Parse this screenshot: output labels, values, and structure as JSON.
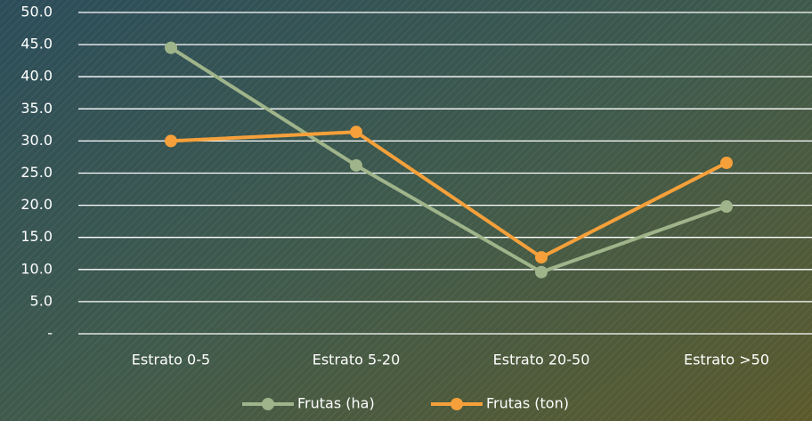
{
  "chart_data": {
    "type": "line",
    "categories": [
      "Estrato 0-5",
      "Estrato 5-20",
      "Estrato 20-50",
      "Estrato >50"
    ],
    "series": [
      {
        "name": "Frutas (ha)",
        "color": "#9fb48a",
        "values": [
          44.5,
          26.2,
          9.6,
          19.8
        ]
      },
      {
        "name": "Frutas (ton)",
        "color": "#f5a03a",
        "values": [
          30.0,
          31.4,
          11.9,
          26.6
        ]
      }
    ],
    "ylim": [
      0,
      50
    ],
    "yticks": [
      {
        "value": 0,
        "label": "-"
      },
      {
        "value": 5,
        "label": "5.0"
      },
      {
        "value": 10,
        "label": "10.0"
      },
      {
        "value": 15,
        "label": "15.0"
      },
      {
        "value": 20,
        "label": "20.0"
      },
      {
        "value": 25,
        "label": "25.0"
      },
      {
        "value": 30,
        "label": "30.0"
      },
      {
        "value": 35,
        "label": "35.0"
      },
      {
        "value": 40,
        "label": "40.0"
      },
      {
        "value": 45,
        "label": "45.0"
      },
      {
        "value": 50,
        "label": "50.0"
      }
    ],
    "grid": true,
    "legend": "bottom"
  }
}
